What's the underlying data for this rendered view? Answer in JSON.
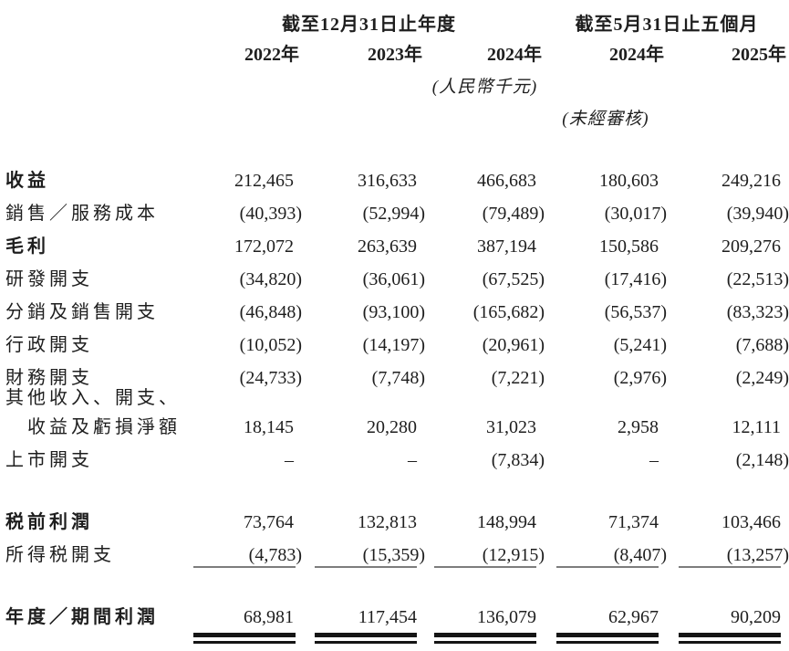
{
  "table": {
    "group_headers": [
      "截至12月31日止年度",
      "截至5月31日止五個月"
    ],
    "year_headers": [
      "2022年",
      "2023年",
      "2024年",
      "2024年",
      "2025年"
    ],
    "unit_note": "(人民幣千元)",
    "unaudited_note": "(未經審核)",
    "rows": [
      {
        "label": "收益",
        "values": [
          "212,465",
          "316,633",
          "466,683",
          "180,603",
          "249,216"
        ]
      },
      {
        "label": "銷售／服務成本",
        "values": [
          "(40,393)",
          "(52,994)",
          "(79,489)",
          "(30,017)",
          "(39,940)"
        ]
      },
      {
        "label": "毛利",
        "values": [
          "172,072",
          "263,639",
          "387,194",
          "150,586",
          "209,276"
        ]
      },
      {
        "label": "研發開支",
        "values": [
          "(34,820)",
          "(36,061)",
          "(67,525)",
          "(17,416)",
          "(22,513)"
        ]
      },
      {
        "label": "分銷及銷售開支",
        "values": [
          "(46,848)",
          "(93,100)",
          "(165,682)",
          "(56,537)",
          "(83,323)"
        ]
      },
      {
        "label": "行政開支",
        "values": [
          "(10,052)",
          "(14,197)",
          "(20,961)",
          "(5,241)",
          "(7,688)"
        ]
      },
      {
        "label": "財務開支",
        "values": [
          "(24,733)",
          "(7,748)",
          "(7,221)",
          "(2,976)",
          "(2,249)"
        ]
      },
      {
        "label": "其他收入、開支、"
      },
      {
        "label": "收益及虧損淨額",
        "values": [
          "18,145",
          "20,280",
          "31,023",
          "2,958",
          "12,111"
        ]
      },
      {
        "label": "上市開支",
        "values": [
          "–",
          "–",
          "(7,834)",
          "–",
          "(2,148)"
        ]
      },
      {
        "label": "税前利潤",
        "values": [
          "73,764",
          "132,813",
          "148,994",
          "71,374",
          "103,466"
        ]
      },
      {
        "label": "所得税開支",
        "values": [
          "(4,783)",
          "(15,359)",
          "(12,915)",
          "(8,407)",
          "(13,257)"
        ]
      },
      {
        "label": "年度／期間利潤",
        "values": [
          "68,981",
          "117,454",
          "136,079",
          "62,967",
          "90,209"
        ]
      }
    ]
  }
}
